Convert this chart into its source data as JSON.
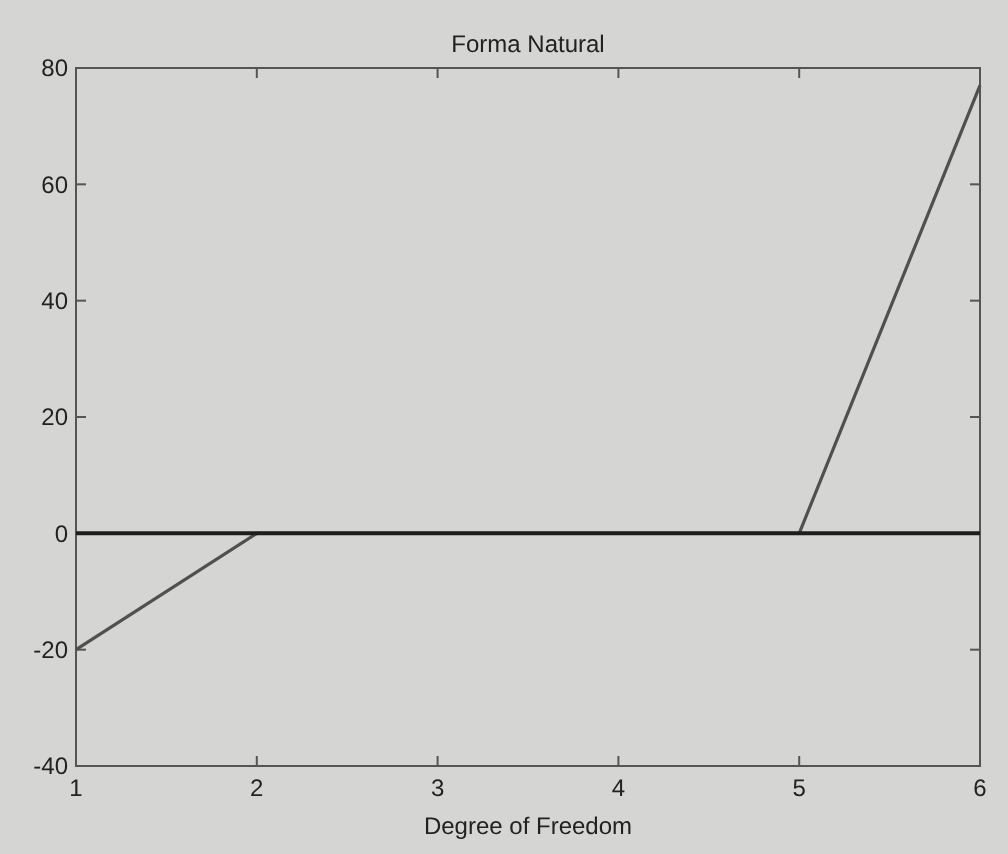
{
  "chart_data": {
    "type": "line",
    "title": "Forma Natural",
    "xlabel": "Degree of Freedom",
    "x": [
      1,
      2,
      3,
      4,
      5,
      6
    ],
    "series": [
      {
        "color": "#505050",
        "values": [
          -20,
          0,
          0,
          0,
          0,
          77
        ]
      }
    ],
    "xlim": [
      1,
      6
    ],
    "xticks": [
      1,
      2,
      3,
      4,
      5,
      6
    ],
    "ylim": [
      -40,
      80
    ],
    "yticks": [
      -40,
      -20,
      0,
      20,
      40,
      60,
      80
    ],
    "ref_lines": [
      {
        "axis": "y",
        "value": 0,
        "color": "#1e1e1e"
      }
    ],
    "grid": false,
    "marker": "none",
    "line_style": "solid"
  }
}
